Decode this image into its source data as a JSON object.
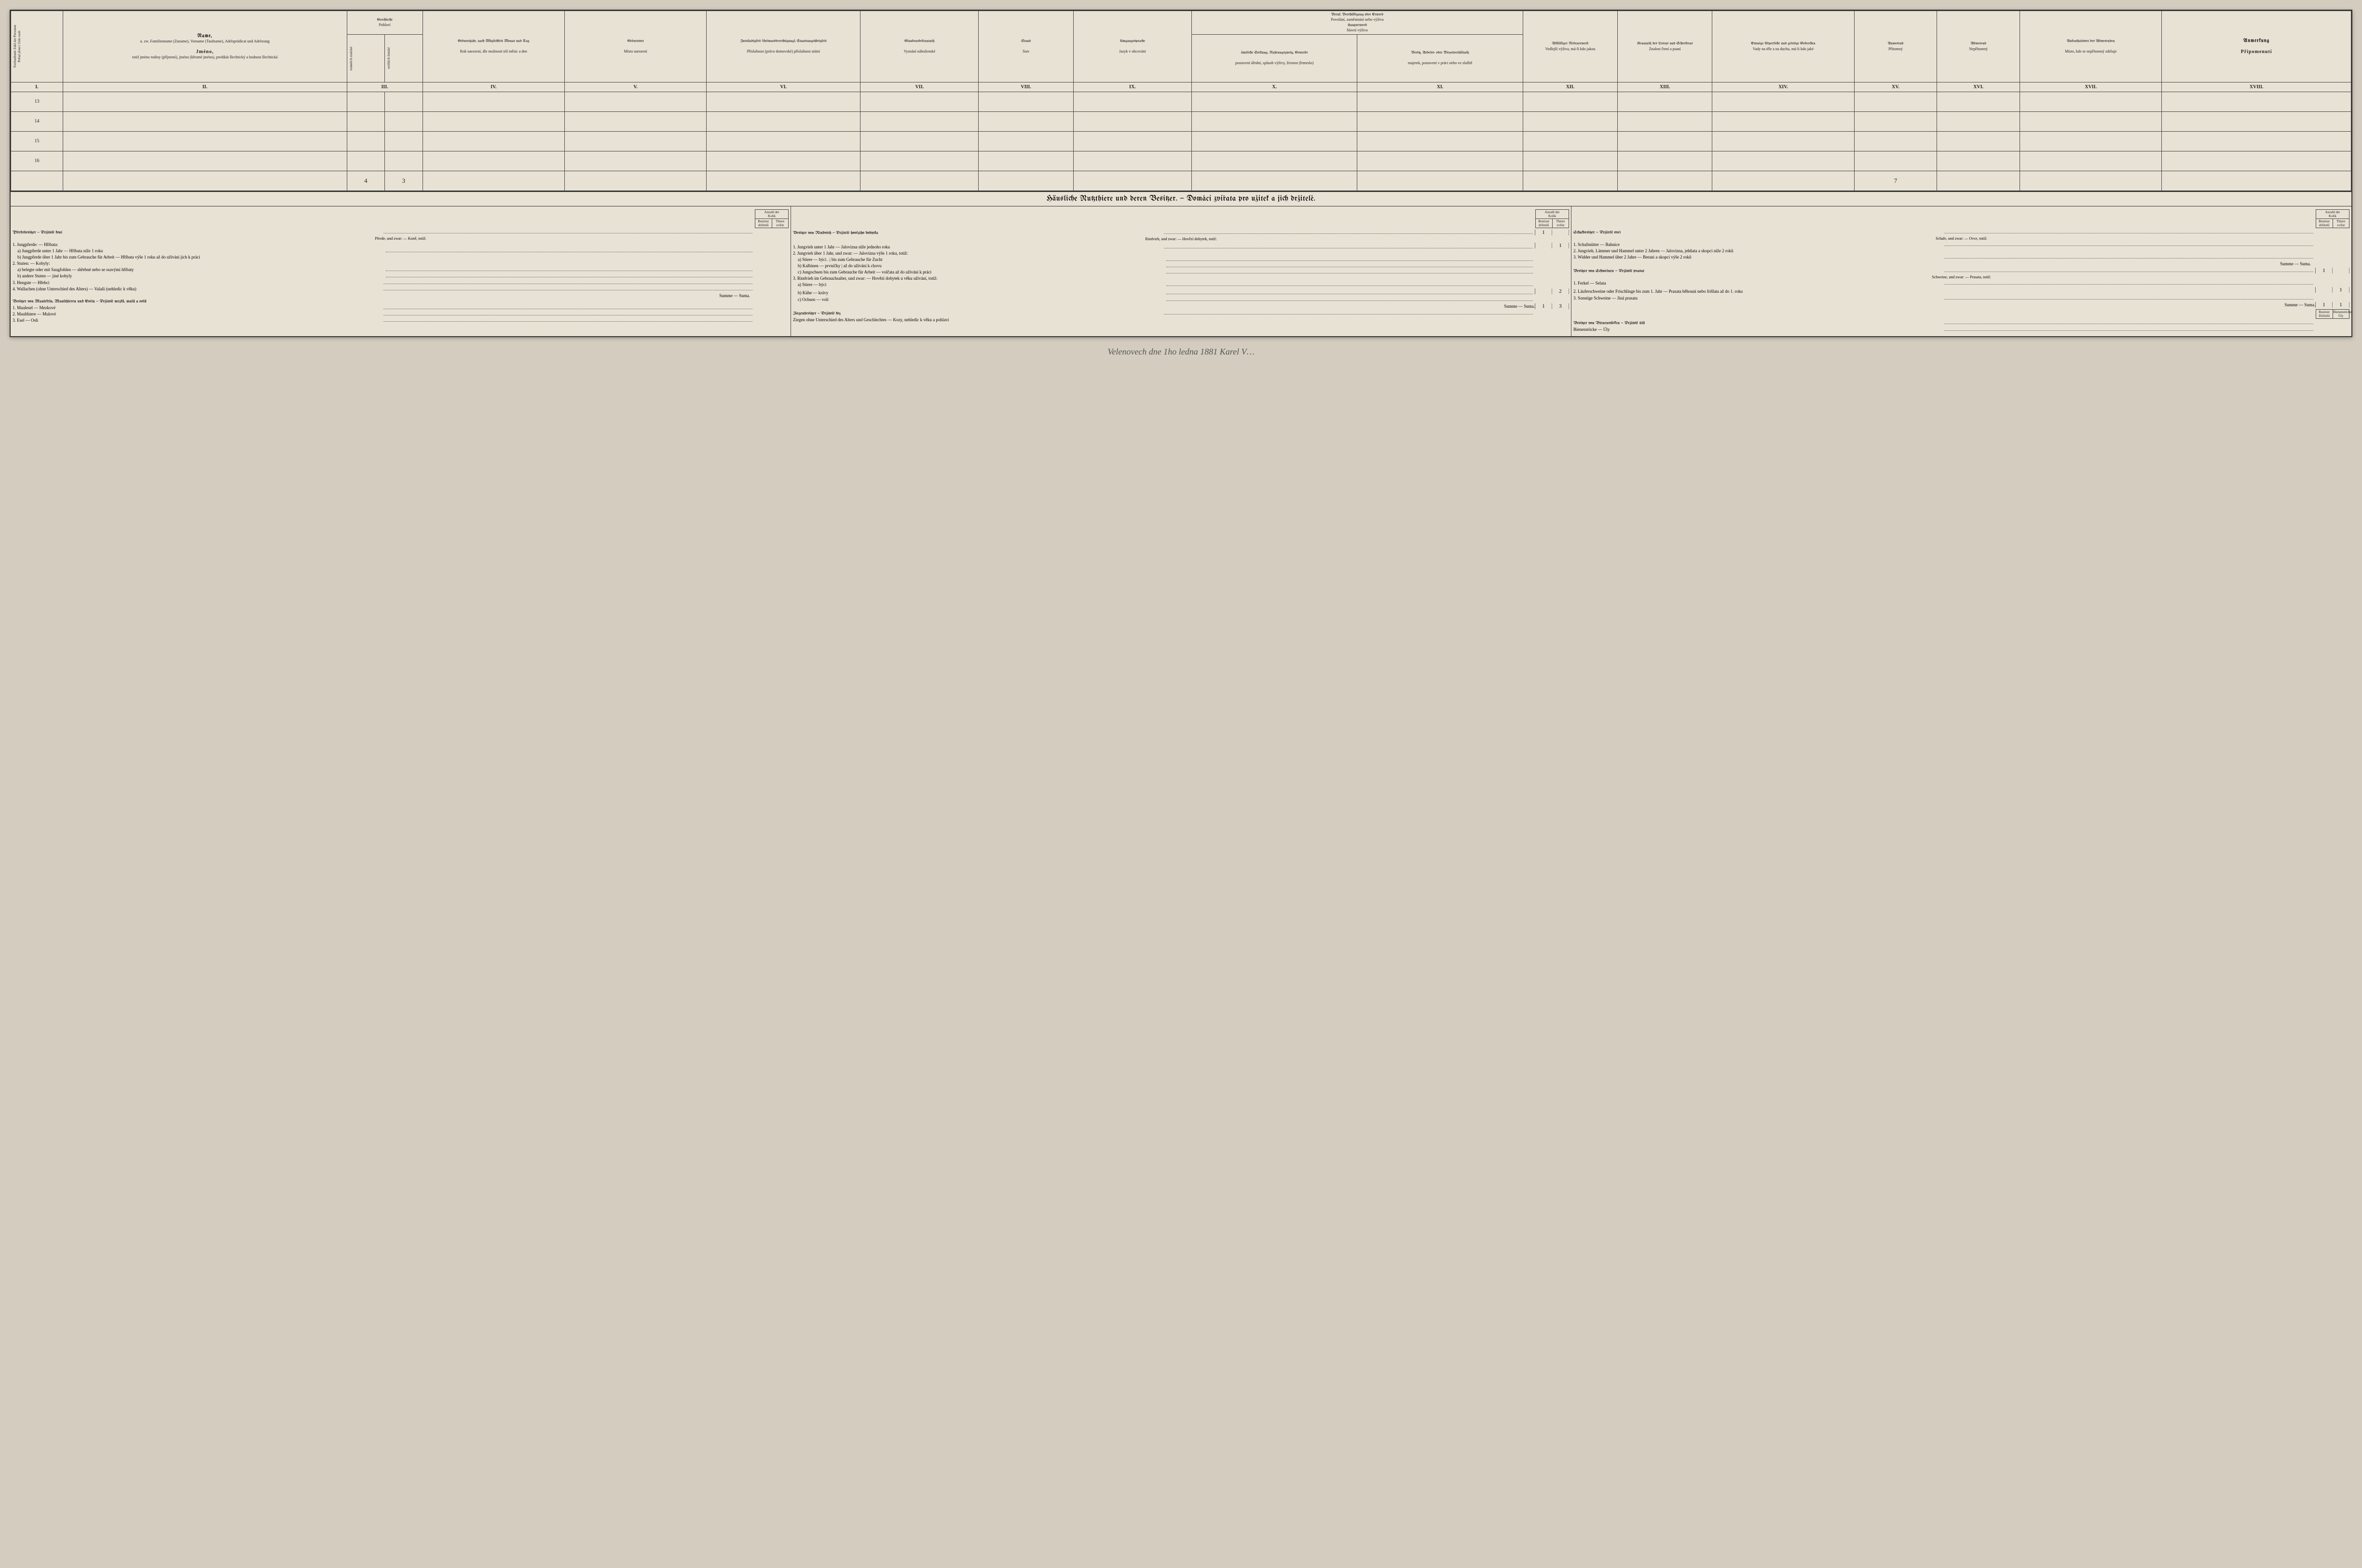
{
  "colors": {
    "paper": "#e8e2d5",
    "ink": "#222",
    "border": "#444",
    "bg": "#d4cdbf"
  },
  "topHeader": {
    "c1": {
      "de": "Fortlaufende Zahl der Personen",
      "cz": "Pořad jdoucí číslo osob"
    },
    "c2": {
      "de_title": "Name,",
      "de_sub": "u. zw. Familienname (Zuname), Vorname (Taufname), Adelsprädicat und Adelsrang",
      "cz_title": "Jméno,",
      "cz_sub": "totiž jméno rodiny (příjmení), jméno (křestné jméno), predikát šlechtický a hodnost šlechtická"
    },
    "c3": {
      "de": "Geschlecht",
      "cz": "Pohlaví",
      "sub_m_de": "männlich",
      "sub_m_cz": "mužské",
      "sub_f_de": "weiblich",
      "sub_f_cz": "ženské"
    },
    "c4": {
      "de": "Geburtsjahr, nach Möglichkeit Monat und Tag",
      "cz": "Rok narození, dle možnosti též měsíc a den"
    },
    "c5": {
      "de": "Geburtsort",
      "cz": "Místo narození"
    },
    "c6": {
      "de": "Zuständigkeit (Heimatsberechtigung), Staatsangehörigkeit",
      "cz": "Příslušnost (právo domovské) příslušnost státní"
    },
    "c7": {
      "de": "Glaubensbekenntniß",
      "cz": "Vyznání náboženské"
    },
    "c8": {
      "de": "Stand",
      "cz": "Stav"
    },
    "c9": {
      "de": "Umgangssprache",
      "cz": "Jazyk v obcování"
    },
    "c10_11": {
      "top_de": "Beruf, Beschäftigung oder Erwerb",
      "top_cz": "Povolání, zaměstnání nebo výživa",
      "mid_de": "Haupterwerb",
      "mid_cz": "hlavní výživa",
      "c10_de": "ämtliche Stellung, Nahrungszweig, Gewerbe",
      "c10_cz": "postavení úřední, spůsob výživy, živnost (řemeslo)",
      "c11_de": "Besitz, Arbeits- oder Dienstverhältniß",
      "c11_cz": "majetek, postavení v práci nebo ve službě"
    },
    "c12": {
      "de": "Allfälliger Nebenerwerb",
      "cz": "Vedlejší výživa, má-li kdo jakou"
    },
    "c13": {
      "de": "Kenntniß des Lesens und Schreibens",
      "cz": "Znalost čtení a psaní"
    },
    "c14": {
      "de": "Etwaige körperliche und geistige Gebrechen",
      "cz": "Vady na těle a na duchu, má-li kdo jaké"
    },
    "c15": {
      "de": "Anwesend",
      "cz": "Přítomný"
    },
    "c16": {
      "de": "Abwesend",
      "cz": "Nepřítomný"
    },
    "c17": {
      "de": "Aufenthaltsort des Abwesenden",
      "cz": "Místo, kde se nepřítomný zdržuje"
    },
    "c18": {
      "de": "Anmerkung",
      "cz": "Připomenutí"
    }
  },
  "roman": [
    "I.",
    "II.",
    "III.",
    "IV.",
    "V.",
    "VI.",
    "VII.",
    "VIII.",
    "IX.",
    "X.",
    "XI.",
    "XII.",
    "XIII.",
    "XIV.",
    "XV.",
    "XVI.",
    "XVII.",
    "XVIII."
  ],
  "rows": [
    "13",
    "14",
    "15",
    "16"
  ],
  "bottomTotals": {
    "male": "4",
    "female": "3",
    "xv": "7"
  },
  "animalsTitle": "Häusliche Nutzthiere und deren Besitzer. — Domácí zvířata pro užitek a jich držitelé.",
  "countHeader": {
    "top": "Anzahl der",
    "top_cz": "Kolik",
    "left_de": "Besitzer",
    "left_cz": "držitelů",
    "right_de": "Thiere",
    "right_cz": "zvířat"
  },
  "col1": {
    "h": "Pferdebesitzer — Držitolé koní",
    "sub": "Pferde, und zwar: — Koně, totiž:",
    "i1": "1. Jungpferde: — Hříbata:",
    "i1a": "a) Jungpferde unter 1 Jahr — Hříbata níže 1 roku",
    "i1b": "b) Jungpferde über 1 Jahr bis zum Gebrauche für Arbeit — Hříbata výše 1 roku až do užívání jich k práci",
    "i2": "2. Stuten: — Kobyly:",
    "i2a": "a) belegte oder mit Saugfohlen — shřebné nebo se ssavými hříbaty",
    "i2b": "b) andere Stuten — jiné kobyly",
    "i3": "3. Hengste — Hřebci",
    "i4": "4. Wallachen (ohne Unterschied des Alters) — Valaši (nehledíc k věku)",
    "sum": "Summe — Suma.",
    "mules_h": "Besitzer von Maulefeln, Maulthieren und Eseln — Držitolé mezků, mulů a oslů",
    "m1": "1. Maulesel — Mezkové",
    "m2": "2. Maulthiere — Mulové",
    "m3": "3. Esel — Osli"
  },
  "col2": {
    "h": "Besitzer von Rindvieh — Držitelé hovězího dobytka",
    "sub": "Rindvieh, und zwar: — Hovězí dobytek, totiž:",
    "i1": "1. Jungvieh unter 1 Jahr — Jalovizna níže jednoho roku",
    "i2": "2. Jungvieh über 1 Jahr, und zwar: — Jalovizna výše 1 roku, totiž:",
    "i2a": "a) Stiere — býci . | bis zum Gebrauche für Zucht",
    "i2b": "b) Kalbinen — prvničky | až do užívání k chovu",
    "i2c": "c) Jungochsen bis zum Gebrauche für Arbeit — volčata až do užívání k práci",
    "i3": "3. Rindvieh im Gebrauchsalter, und zwar: — Hovězí dobytek u věku užívání, totiž:",
    "i3a": "a) Stiere — býci",
    "i3b": "b) Kühe — krávy",
    "i3c": "c) Ochsen — voli",
    "sum": "Summe — Suma.",
    "goat_h": "Ziegenbesitzer — Držitolé koz",
    "goat": "Ziegen ohne Unterschied des Alters und Geschlechtes — Kozy, nehledíc k věku a pohlaví",
    "v_h": "1",
    "v_i1": "1",
    "v_i3b": "2",
    "v_sum_b": "1",
    "v_sum_t": "3"
  },
  "col3": {
    "h": "Schafbesitzer — Držitelé ovcí",
    "sub": "Schafe, und zwar: — Ovce, totiž:",
    "i1": "1. Schafmütter — Bahnice",
    "i2": "2. Jungvieh, Lämmer und Hammel unter 2 Jahren — Jalovizna, jehňata a skopci níže 2 roků",
    "i3": "3. Widder und Hammel über 2 Jahre — Berani a skopci výše 2 roků",
    "sum": "Summe — Suma.",
    "pig_h": "Besitzer von Schweinen — Držitolé prasat",
    "pig_sub": "Schweine, und zwar: — Prasata, totiž:",
    "p1": "1. Ferkel — Selata",
    "p2": "2. Läuferschweine oder Frischlinge bis zum 1. Jahr — Prasata běhouni nebo frišlata až do 1. roku",
    "p3": "3. Sonstige Schweine — Jiná prasata",
    "pig_sum": "Summe — Suma.",
    "bee_h": "Besitzer von Bienenstöcken — Držitolé úlů",
    "bee": "Bienenstöcke — Úly",
    "v_pig_h": "1",
    "v_p2": "1",
    "v_sum_b": "1",
    "v_sum_t": "1",
    "extra_h": {
      "b": "Besitzer",
      "b_cz": "Držitelů",
      "t": "Bienenstöcke",
      "t_cz": "Úly"
    }
  },
  "signature": "Velenovech dne 1ho ledna 1881\nKarel V…"
}
